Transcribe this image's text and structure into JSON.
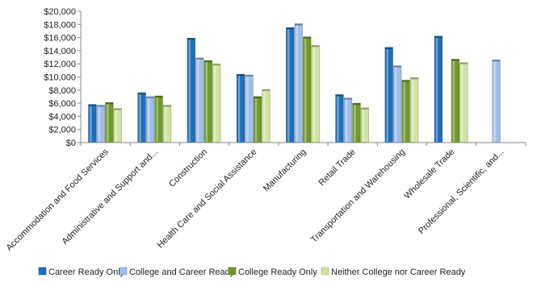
{
  "chart_data": {
    "type": "bar",
    "title": "",
    "xlabel": "",
    "ylabel": "",
    "ylim": [
      0,
      20000
    ],
    "yticks": [
      "$0",
      "$2,000",
      "$4,000",
      "$6,000",
      "$8,000",
      "$10,000",
      "$12,000",
      "$14,000",
      "$16,000",
      "$18,000",
      "$20,000"
    ],
    "grid": false,
    "legend_position": "bottom",
    "categories": [
      "Accommodation and Food Services",
      "Administrative and Support and...",
      "Construction",
      "Health Care and Social Assistance",
      "Manufacturing",
      "Retail Trade",
      "Transportation and Warehousing",
      "Wholesale Trade",
      "Professional, Scientific, and..."
    ],
    "series": [
      {
        "name": "Career Ready Only",
        "color": "#1f6fb8",
        "values": [
          5800,
          7600,
          15900,
          10400,
          17500,
          7300,
          14500,
          16200,
          null
        ]
      },
      {
        "name": "College and Career Ready",
        "color": "#9fbde8",
        "values": [
          5700,
          7000,
          12900,
          10300,
          18100,
          6800,
          11700,
          null,
          12600
        ]
      },
      {
        "name": "College Ready Only",
        "color": "#6f9a2a",
        "values": [
          6100,
          7100,
          12500,
          7000,
          16100,
          6000,
          9500,
          12700,
          null
        ]
      },
      {
        "name": "Neither College nor Career Ready",
        "color": "#cfe3a3",
        "values": [
          5200,
          5700,
          12000,
          8100,
          14800,
          5300,
          9900,
          12200,
          null
        ]
      }
    ]
  }
}
